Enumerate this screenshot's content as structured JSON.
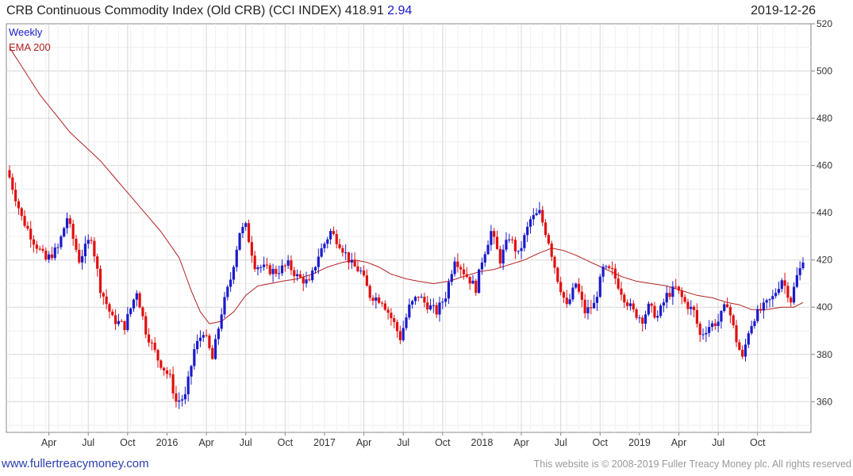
{
  "header": {
    "title": "CRB Continuous Commodity Index (Old CRB) (CCI INDEX) 418.91",
    "change": "2.94",
    "date": "2019-12-26"
  },
  "footer": {
    "site": "www.fullertreacymoney.com",
    "copyright": "This website is © 2008-2019 Fuller Treacy Money plc. All rights reserved"
  },
  "chart_data": {
    "type": "candlestick",
    "title": "CRB Continuous Commodity Index (Old CRB) (CCI INDEX)",
    "interval_label": "Weekly",
    "overlay_label": "EMA 200",
    "ylim": [
      347,
      520
    ],
    "yticks": [
      360,
      380,
      400,
      420,
      440,
      460,
      480,
      500,
      520
    ],
    "xticks": [
      {
        "week": 13,
        "label": "Apr"
      },
      {
        "week": 26,
        "label": "Jul"
      },
      {
        "week": 39,
        "label": "Oct"
      },
      {
        "week": 52,
        "label": "2016"
      },
      {
        "week": 65,
        "label": "Apr"
      },
      {
        "week": 78,
        "label": "Jul"
      },
      {
        "week": 91,
        "label": "Oct"
      },
      {
        "week": 104,
        "label": "2017"
      },
      {
        "week": 117,
        "label": "Apr"
      },
      {
        "week": 130,
        "label": "Jul"
      },
      {
        "week": 143,
        "label": "Oct"
      },
      {
        "week": 156,
        "label": "2018"
      },
      {
        "week": 169,
        "label": "Apr"
      },
      {
        "week": 182,
        "label": "Jul"
      },
      {
        "week": 195,
        "label": "Oct"
      },
      {
        "week": 208,
        "label": "2019"
      },
      {
        "week": 221,
        "label": "Apr"
      },
      {
        "week": 234,
        "label": "Jul"
      },
      {
        "week": 247,
        "label": "Oct"
      }
    ],
    "close_anchors": [
      [
        0,
        455
      ],
      [
        4,
        438
      ],
      [
        8,
        428
      ],
      [
        12,
        420
      ],
      [
        16,
        425
      ],
      [
        19,
        438
      ],
      [
        23,
        420
      ],
      [
        27,
        430
      ],
      [
        30,
        408
      ],
      [
        34,
        395
      ],
      [
        38,
        392
      ],
      [
        42,
        407
      ],
      [
        45,
        390
      ],
      [
        49,
        378
      ],
      [
        53,
        370
      ],
      [
        55,
        360
      ],
      [
        58,
        362
      ],
      [
        61,
        382
      ],
      [
        64,
        390
      ],
      [
        67,
        378
      ],
      [
        70,
        398
      ],
      [
        73,
        412
      ],
      [
        76,
        432
      ],
      [
        78,
        434
      ],
      [
        81,
        418
      ],
      [
        85,
        416
      ],
      [
        88,
        415
      ],
      [
        92,
        418
      ],
      [
        95,
        413
      ],
      [
        99,
        410
      ],
      [
        102,
        422
      ],
      [
        106,
        432
      ],
      [
        109,
        427
      ],
      [
        113,
        418
      ],
      [
        116,
        415
      ],
      [
        119,
        405
      ],
      [
        123,
        403
      ],
      [
        127,
        393
      ],
      [
        129,
        387
      ],
      [
        132,
        400
      ],
      [
        135,
        405
      ],
      [
        137,
        402
      ],
      [
        141,
        398
      ],
      [
        144,
        405
      ],
      [
        147,
        421
      ],
      [
        150,
        415
      ],
      [
        154,
        408
      ],
      [
        156,
        420
      ],
      [
        159,
        432
      ],
      [
        162,
        420
      ],
      [
        165,
        430
      ],
      [
        168,
        422
      ],
      [
        172,
        437
      ],
      [
        175,
        440
      ],
      [
        178,
        428
      ],
      [
        181,
        412
      ],
      [
        184,
        400
      ],
      [
        187,
        410
      ],
      [
        190,
        398
      ],
      [
        193,
        401
      ],
      [
        196,
        416
      ],
      [
        199,
        415
      ],
      [
        203,
        404
      ],
      [
        206,
        398
      ],
      [
        209,
        395
      ],
      [
        211,
        400
      ],
      [
        214,
        396
      ],
      [
        217,
        405
      ],
      [
        220,
        408
      ],
      [
        223,
        402
      ],
      [
        226,
        398
      ],
      [
        228,
        388
      ],
      [
        231,
        392
      ],
      [
        234,
        394
      ],
      [
        237,
        402
      ],
      [
        240,
        386
      ],
      [
        242,
        378
      ],
      [
        244,
        390
      ],
      [
        246,
        396
      ],
      [
        249,
        400
      ],
      [
        252,
        404
      ],
      [
        255,
        412
      ],
      [
        258,
        403
      ],
      [
        260,
        413
      ],
      [
        262,
        419
      ]
    ],
    "ema200_points": [
      [
        0,
        510
      ],
      [
        10,
        490
      ],
      [
        20,
        474
      ],
      [
        30,
        462
      ],
      [
        40,
        447
      ],
      [
        50,
        432
      ],
      [
        56,
        421
      ],
      [
        60,
        407
      ],
      [
        63,
        398
      ],
      [
        66,
        393
      ],
      [
        70,
        394
      ],
      [
        74,
        398
      ],
      [
        78,
        405
      ],
      [
        82,
        409
      ],
      [
        86,
        410
      ],
      [
        90,
        411
      ],
      [
        95,
        412
      ],
      [
        100,
        414
      ],
      [
        105,
        417
      ],
      [
        110,
        419
      ],
      [
        114,
        420
      ],
      [
        118,
        419
      ],
      [
        122,
        417
      ],
      [
        126,
        414
      ],
      [
        131,
        412
      ],
      [
        135,
        411
      ],
      [
        140,
        410
      ],
      [
        145,
        411
      ],
      [
        150,
        413
      ],
      [
        155,
        415
      ],
      [
        160,
        416
      ],
      [
        165,
        418
      ],
      [
        170,
        420
      ],
      [
        175,
        423
      ],
      [
        179,
        425
      ],
      [
        183,
        424
      ],
      [
        187,
        422
      ],
      [
        192,
        419
      ],
      [
        197,
        416
      ],
      [
        202,
        413
      ],
      [
        207,
        411
      ],
      [
        212,
        410
      ],
      [
        217,
        409
      ],
      [
        222,
        407
      ],
      [
        227,
        405
      ],
      [
        232,
        404
      ],
      [
        237,
        402
      ],
      [
        241,
        401
      ],
      [
        245,
        399
      ],
      [
        250,
        399
      ],
      [
        255,
        400
      ],
      [
        259,
        400
      ],
      [
        262,
        402
      ]
    ],
    "total_weeks": 263,
    "last_close": 418.91,
    "change": 2.94
  }
}
